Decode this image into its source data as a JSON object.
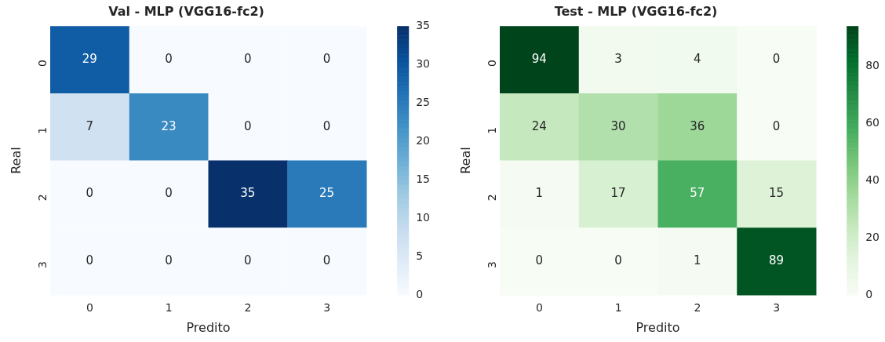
{
  "chart_data": [
    {
      "type": "heatmap",
      "title": "Val - MLP (VGG16-fc2)",
      "xlabel": "Predito",
      "ylabel": "Real",
      "categories": [
        "0",
        "1",
        "2",
        "3"
      ],
      "y_categories": [
        "0",
        "1",
        "2",
        "3"
      ],
      "cells": [
        [
          29,
          0,
          0,
          0
        ],
        [
          7,
          23,
          0,
          0
        ],
        [
          0,
          0,
          35,
          25
        ],
        [
          0,
          0,
          0,
          0
        ]
      ],
      "data_labels": true,
      "clim": [
        0,
        35
      ],
      "cticks": [
        0,
        5,
        10,
        15,
        20,
        25,
        30,
        35
      ]
    },
    {
      "type": "heatmap",
      "title": "Test - MLP (VGG16-fc2)",
      "xlabel": "Predito",
      "ylabel": "Real",
      "categories": [
        "0",
        "1",
        "2",
        "3"
      ],
      "y_categories": [
        "0",
        "1",
        "2",
        "3"
      ],
      "cells": [
        [
          94,
          3,
          4,
          0
        ],
        [
          24,
          30,
          36,
          0
        ],
        [
          1,
          17,
          57,
          15
        ],
        [
          0,
          0,
          1,
          89
        ]
      ],
      "data_labels": true,
      "clim": [
        0,
        94
      ],
      "cticks": [
        0,
        20,
        40,
        60,
        80
      ]
    }
  ]
}
